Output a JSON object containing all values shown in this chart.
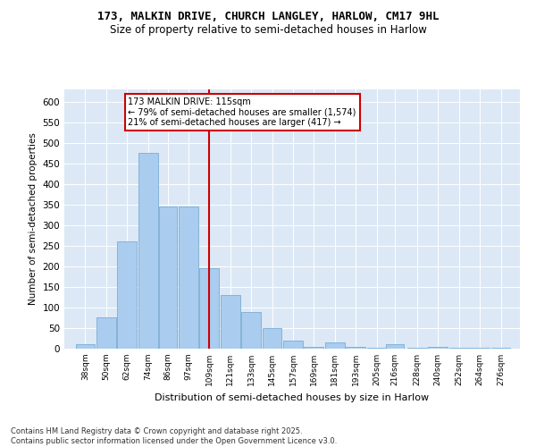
{
  "title_line1": "173, MALKIN DRIVE, CHURCH LANGLEY, HARLOW, CM17 9HL",
  "title_line2": "Size of property relative to semi-detached houses in Harlow",
  "xlabel": "Distribution of semi-detached houses by size in Harlow",
  "ylabel": "Number of semi-detached properties",
  "footer_line1": "Contains HM Land Registry data © Crown copyright and database right 2025.",
  "footer_line2": "Contains public sector information licensed under the Open Government Licence v3.0.",
  "annotation_line1": "173 MALKIN DRIVE: 115sqm",
  "annotation_line2": "← 79% of semi-detached houses are smaller (1,574)",
  "annotation_line3": "21% of semi-detached houses are larger (417) →",
  "marker_value": 115,
  "categories": [
    "38sqm",
    "50sqm",
    "62sqm",
    "74sqm",
    "86sqm",
    "97sqm",
    "109sqm",
    "121sqm",
    "133sqm",
    "145sqm",
    "157sqm",
    "169sqm",
    "181sqm",
    "193sqm",
    "205sqm",
    "216sqm",
    "228sqm",
    "240sqm",
    "252sqm",
    "264sqm",
    "276sqm"
  ],
  "bar_centers": [
    44,
    56,
    68,
    80,
    91.5,
    103,
    115,
    127,
    139,
    151,
    163,
    175,
    187,
    199,
    211,
    221.5,
    234,
    246,
    258,
    270,
    282
  ],
  "bar_widths": [
    11.5,
    11.5,
    11.5,
    11.5,
    10.5,
    11.5,
    11.5,
    11.5,
    11.5,
    11.5,
    11.5,
    11.5,
    11.5,
    11.5,
    11.5,
    10.5,
    11.5,
    11.5,
    11.5,
    11.5,
    11.5
  ],
  "values": [
    10,
    75,
    260,
    475,
    345,
    345,
    195,
    130,
    90,
    50,
    20,
    5,
    15,
    5,
    2,
    10,
    2,
    5,
    2,
    2,
    2
  ],
  "bar_color": "#aaccee",
  "bar_edge_color": "#7aadd4",
  "marker_line_color": "#cc0000",
  "annotation_box_edge_color": "#cc0000",
  "background_color": "#dce8f5",
  "ylim": [
    0,
    630
  ],
  "yticks": [
    0,
    50,
    100,
    150,
    200,
    250,
    300,
    350,
    400,
    450,
    500,
    550,
    600
  ],
  "xlim_left": 32,
  "xlim_right": 293
}
